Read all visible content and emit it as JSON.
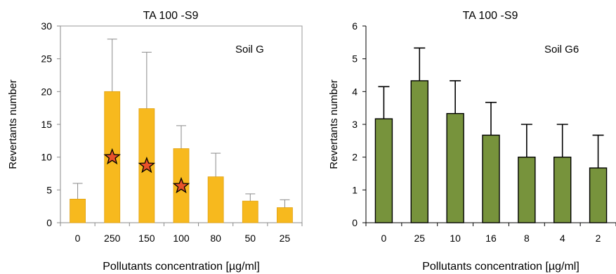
{
  "chart_data": [
    {
      "type": "bar",
      "title": "TA 100 -S9",
      "annotation": "Soil G",
      "xlabel": "Pollutants concentration [µg/ml]",
      "ylabel": "Revertants number",
      "ylim": [
        0,
        30
      ],
      "yticks": [
        "0",
        "5",
        "10",
        "15",
        "20",
        "25",
        "30"
      ],
      "categories": [
        "0",
        "250",
        "150",
        "100",
        "80",
        "50",
        "25"
      ],
      "values": [
        3.6,
        20.0,
        17.4,
        11.3,
        7.0,
        3.3,
        2.3
      ],
      "error_upper": [
        6.0,
        28.0,
        26.0,
        14.8,
        10.6,
        4.4,
        3.5
      ],
      "star_values": [
        null,
        10.0,
        8.7,
        5.6,
        null,
        null,
        null
      ],
      "bar_color": "#F7B91E",
      "bar_edge_color": "#E0A010",
      "star_fill": "#E8522A",
      "star_edge": "#000000",
      "frame": true,
      "grid": false
    },
    {
      "type": "bar",
      "title": "TA 100 -S9",
      "annotation": "Soil G6",
      "xlabel": "Pollutants concentration [µg/ml]",
      "ylabel": "Revertants number",
      "ylim": [
        0,
        6
      ],
      "yticks": [
        "0",
        "1",
        "2",
        "3",
        "4",
        "5",
        "6"
      ],
      "categories": [
        "0",
        "25",
        "10",
        "16",
        "8",
        "4",
        "2"
      ],
      "values": [
        3.17,
        4.33,
        3.33,
        2.67,
        2.0,
        2.0,
        1.67
      ],
      "error_upper": [
        4.15,
        5.33,
        4.33,
        3.67,
        3.0,
        3.0,
        2.67
      ],
      "bar_color": "#77933C",
      "bar_edge_color": "#000000",
      "frame": false,
      "grid": false
    }
  ]
}
